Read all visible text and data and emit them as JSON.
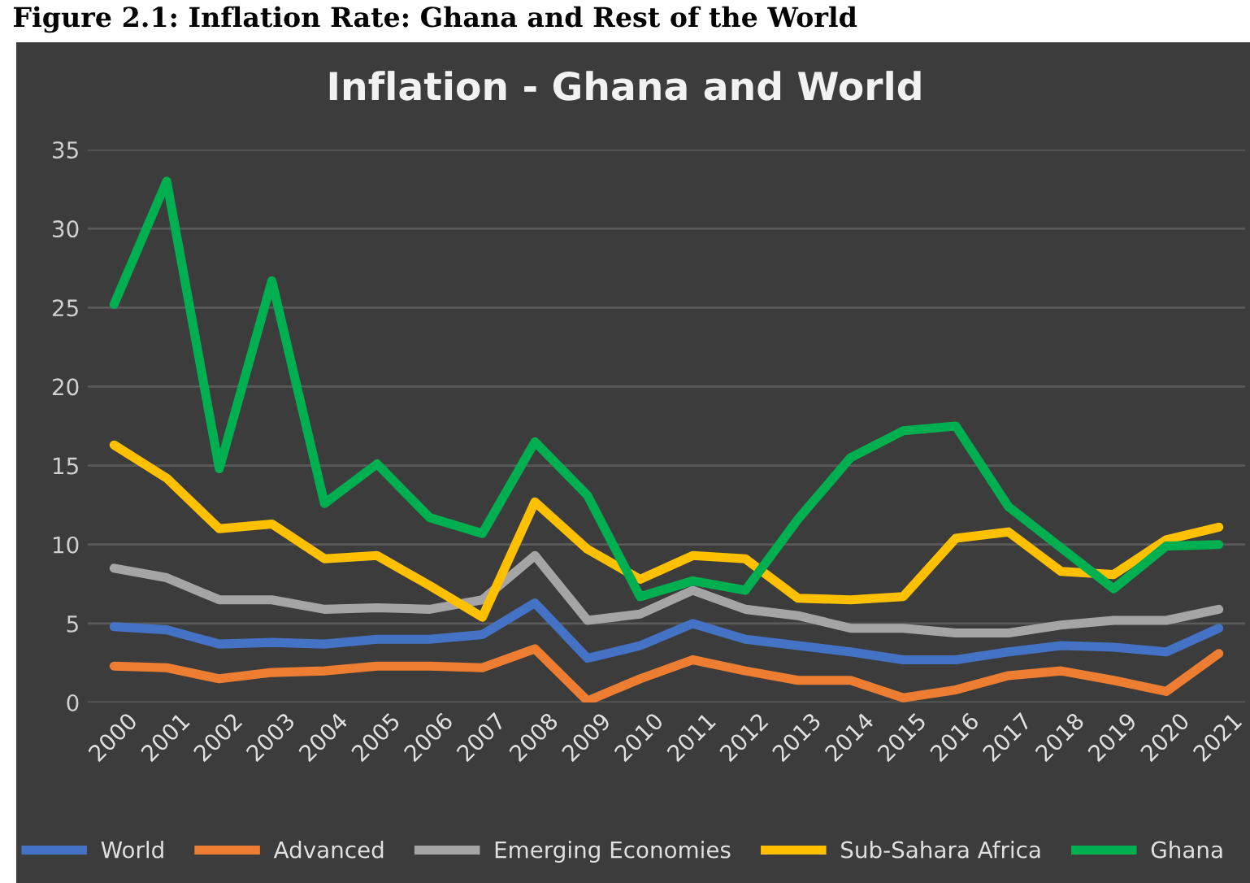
{
  "chart_data": {
    "type": "line",
    "title": "Inflation - Ghana and World",
    "subtitle": "Figure 2.1: Inflation Rate: Ghana and Rest of the World",
    "categories": [
      "2000",
      "2001",
      "2002",
      "2003",
      "2004",
      "2005",
      "2006",
      "2007",
      "2008",
      "2009",
      "2010",
      "2011",
      "2012",
      "2013",
      "2014",
      "2015",
      "2016",
      "2017",
      "2018",
      "2019",
      "2020",
      "2021"
    ],
    "series": [
      {
        "name": "World",
        "color": "#4472c4",
        "values": [
          4.8,
          4.6,
          3.7,
          3.8,
          3.7,
          4.0,
          4.0,
          4.3,
          6.3,
          2.8,
          3.6,
          5.0,
          4.0,
          3.6,
          3.2,
          2.7,
          2.7,
          3.2,
          3.6,
          3.5,
          3.2,
          4.7
        ]
      },
      {
        "name": "Advanced",
        "color": "#ed7d31",
        "values": [
          2.3,
          2.2,
          1.5,
          1.9,
          2.0,
          2.3,
          2.3,
          2.2,
          3.4,
          0.1,
          1.5,
          2.7,
          2.0,
          1.4,
          1.4,
          0.3,
          0.8,
          1.7,
          2.0,
          1.4,
          0.7,
          3.1
        ]
      },
      {
        "name": "Emerging Economies",
        "color": "#a5a5a5",
        "values": [
          8.5,
          7.9,
          6.5,
          6.5,
          5.9,
          6.0,
          5.9,
          6.5,
          9.3,
          5.2,
          5.6,
          7.1,
          5.9,
          5.5,
          4.7,
          4.7,
          4.4,
          4.4,
          4.9,
          5.2,
          5.2,
          5.9
        ]
      },
      {
        "name": "Sub-Sahara Africa",
        "color": "#ffc000",
        "values": [
          16.3,
          14.2,
          11.0,
          11.3,
          9.1,
          9.3,
          7.4,
          5.4,
          12.7,
          9.7,
          7.8,
          9.3,
          9.1,
          6.6,
          6.5,
          6.7,
          10.4,
          10.8,
          8.3,
          8.1,
          10.3,
          11.1
        ]
      },
      {
        "name": "Ghana",
        "color": "#00b050",
        "values": [
          25.2,
          33.0,
          14.8,
          26.7,
          12.6,
          15.1,
          11.7,
          10.7,
          16.5,
          13.1,
          6.7,
          7.7,
          7.1,
          11.6,
          15.5,
          17.2,
          17.5,
          12.4,
          9.8,
          7.2,
          9.9,
          10.0
        ]
      }
    ],
    "ylim": [
      0,
      35
    ],
    "yticks": [
      0,
      5,
      10,
      15,
      20,
      25,
      30,
      35
    ],
    "grid": "y",
    "legend": "bottom",
    "line_style": "solid",
    "marker": "none"
  }
}
